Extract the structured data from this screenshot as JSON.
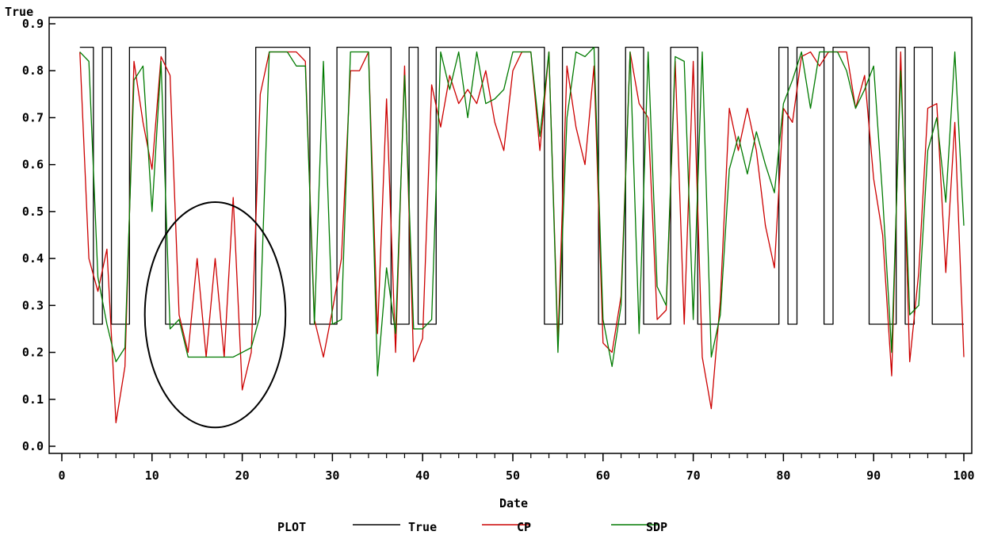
{
  "chart_data": {
    "type": "line",
    "ylabel": "True",
    "xlabel": "Date",
    "xlim": [
      0,
      100
    ],
    "ylim": [
      0.0,
      0.9
    ],
    "x_ticks": [
      "0",
      "10",
      "20",
      "30",
      "40",
      "50",
      "60",
      "70",
      "80",
      "90",
      "100"
    ],
    "y_ticks": [
      "0.0",
      "0.1",
      "0.2",
      "0.3",
      "0.4",
      "0.5",
      "0.6",
      "0.7",
      "0.8",
      "0.9"
    ],
    "grid": false,
    "legend": {
      "title": "PLOT",
      "placement": "bottom"
    },
    "colors": {
      "True": "#000000",
      "CP": "#cc0000",
      "SDP": "#007a00",
      "annotation": "#000000"
    },
    "annotation": {
      "shape": "ellipse",
      "center_x": 17,
      "center_y": 0.28,
      "radius_x": 7.8,
      "radius_y": 0.24
    },
    "x": [
      2,
      3,
      4,
      5,
      6,
      7,
      8,
      9,
      10,
      11,
      12,
      13,
      14,
      15,
      16,
      17,
      18,
      19,
      20,
      21,
      22,
      23,
      24,
      25,
      26,
      27,
      28,
      29,
      30,
      31,
      32,
      33,
      34,
      35,
      36,
      37,
      38,
      39,
      40,
      41,
      42,
      43,
      44,
      45,
      46,
      47,
      48,
      49,
      50,
      51,
      52,
      53,
      54,
      55,
      56,
      57,
      58,
      59,
      60,
      61,
      62,
      63,
      64,
      65,
      66,
      67,
      68,
      69,
      70,
      71,
      72,
      73,
      74,
      75,
      76,
      77,
      78,
      79,
      80,
      81,
      82,
      83,
      84,
      85,
      86,
      87,
      88,
      89,
      90,
      91,
      92,
      93,
      94,
      95,
      96,
      97,
      98,
      99,
      100
    ],
    "series": [
      {
        "name": "True",
        "style": "step",
        "values": [
          0.85,
          0.85,
          0.26,
          0.85,
          0.26,
          0.26,
          0.85,
          0.85,
          0.85,
          0.85,
          0.26,
          0.26,
          0.26,
          0.26,
          0.26,
          0.26,
          0.26,
          0.26,
          0.26,
          0.26,
          0.85,
          0.85,
          0.85,
          0.85,
          0.85,
          0.85,
          0.26,
          0.26,
          0.26,
          0.85,
          0.85,
          0.85,
          0.85,
          0.85,
          0.85,
          0.26,
          0.26,
          0.85,
          0.26,
          0.26,
          0.85,
          0.85,
          0.85,
          0.85,
          0.85,
          0.85,
          0.85,
          0.85,
          0.85,
          0.85,
          0.85,
          0.85,
          0.26,
          0.26,
          0.85,
          0.85,
          0.85,
          0.85,
          0.26,
          0.26,
          0.26,
          0.85,
          0.85,
          0.26,
          0.26,
          0.26,
          0.85,
          0.85,
          0.85,
          0.26,
          0.26,
          0.26,
          0.26,
          0.26,
          0.26,
          0.26,
          0.26,
          0.26,
          0.85,
          0.26,
          0.85,
          0.85,
          0.85,
          0.26,
          0.85,
          0.85,
          0.85,
          0.85,
          0.26,
          0.26,
          0.26,
          0.85,
          0.26,
          0.85,
          0.85,
          0.26,
          0.26,
          0.26,
          0.26
        ]
      },
      {
        "name": "CP",
        "style": "line",
        "values": [
          0.84,
          0.4,
          0.33,
          0.42,
          0.05,
          0.17,
          0.82,
          0.69,
          0.59,
          0.83,
          0.79,
          0.28,
          0.2,
          0.4,
          0.19,
          0.4,
          0.19,
          0.53,
          0.12,
          0.2,
          0.75,
          0.84,
          0.84,
          0.84,
          0.84,
          0.82,
          0.27,
          0.19,
          0.29,
          0.4,
          0.8,
          0.8,
          0.84,
          0.24,
          0.74,
          0.2,
          0.81,
          0.18,
          0.23,
          0.77,
          0.68,
          0.79,
          0.73,
          0.76,
          0.73,
          0.8,
          0.69,
          0.63,
          0.8,
          0.84,
          0.84,
          0.63,
          0.84,
          0.22,
          0.81,
          0.68,
          0.6,
          0.81,
          0.22,
          0.2,
          0.32,
          0.84,
          0.73,
          0.7,
          0.27,
          0.29,
          0.82,
          0.26,
          0.82,
          0.19,
          0.08,
          0.31,
          0.72,
          0.63,
          0.72,
          0.63,
          0.47,
          0.38,
          0.72,
          0.69,
          0.83,
          0.84,
          0.81,
          0.84,
          0.84,
          0.84,
          0.72,
          0.79,
          0.57,
          0.45,
          0.15,
          0.84,
          0.18,
          0.37,
          0.72,
          0.73,
          0.37,
          0.69,
          0.19
        ]
      },
      {
        "name": "SDP",
        "style": "line",
        "values": [
          0.84,
          0.82,
          0.36,
          0.26,
          0.18,
          0.21,
          0.78,
          0.81,
          0.5,
          0.82,
          0.25,
          0.27,
          0.19,
          0.19,
          0.19,
          0.19,
          0.19,
          0.19,
          0.2,
          0.21,
          0.28,
          0.84,
          0.84,
          0.84,
          0.81,
          0.81,
          0.26,
          0.82,
          0.26,
          0.27,
          0.84,
          0.84,
          0.84,
          0.15,
          0.38,
          0.24,
          0.79,
          0.25,
          0.25,
          0.27,
          0.84,
          0.76,
          0.84,
          0.7,
          0.84,
          0.73,
          0.74,
          0.76,
          0.84,
          0.84,
          0.84,
          0.66,
          0.84,
          0.2,
          0.7,
          0.84,
          0.83,
          0.85,
          0.27,
          0.17,
          0.3,
          0.84,
          0.24,
          0.84,
          0.34,
          0.3,
          0.83,
          0.82,
          0.27,
          0.84,
          0.19,
          0.28,
          0.59,
          0.66,
          0.58,
          0.67,
          0.6,
          0.54,
          0.73,
          0.78,
          0.84,
          0.72,
          0.84,
          0.84,
          0.84,
          0.8,
          0.72,
          0.76,
          0.81,
          0.53,
          0.2,
          0.8,
          0.28,
          0.3,
          0.63,
          0.7,
          0.52,
          0.84,
          0.47
        ]
      }
    ]
  }
}
